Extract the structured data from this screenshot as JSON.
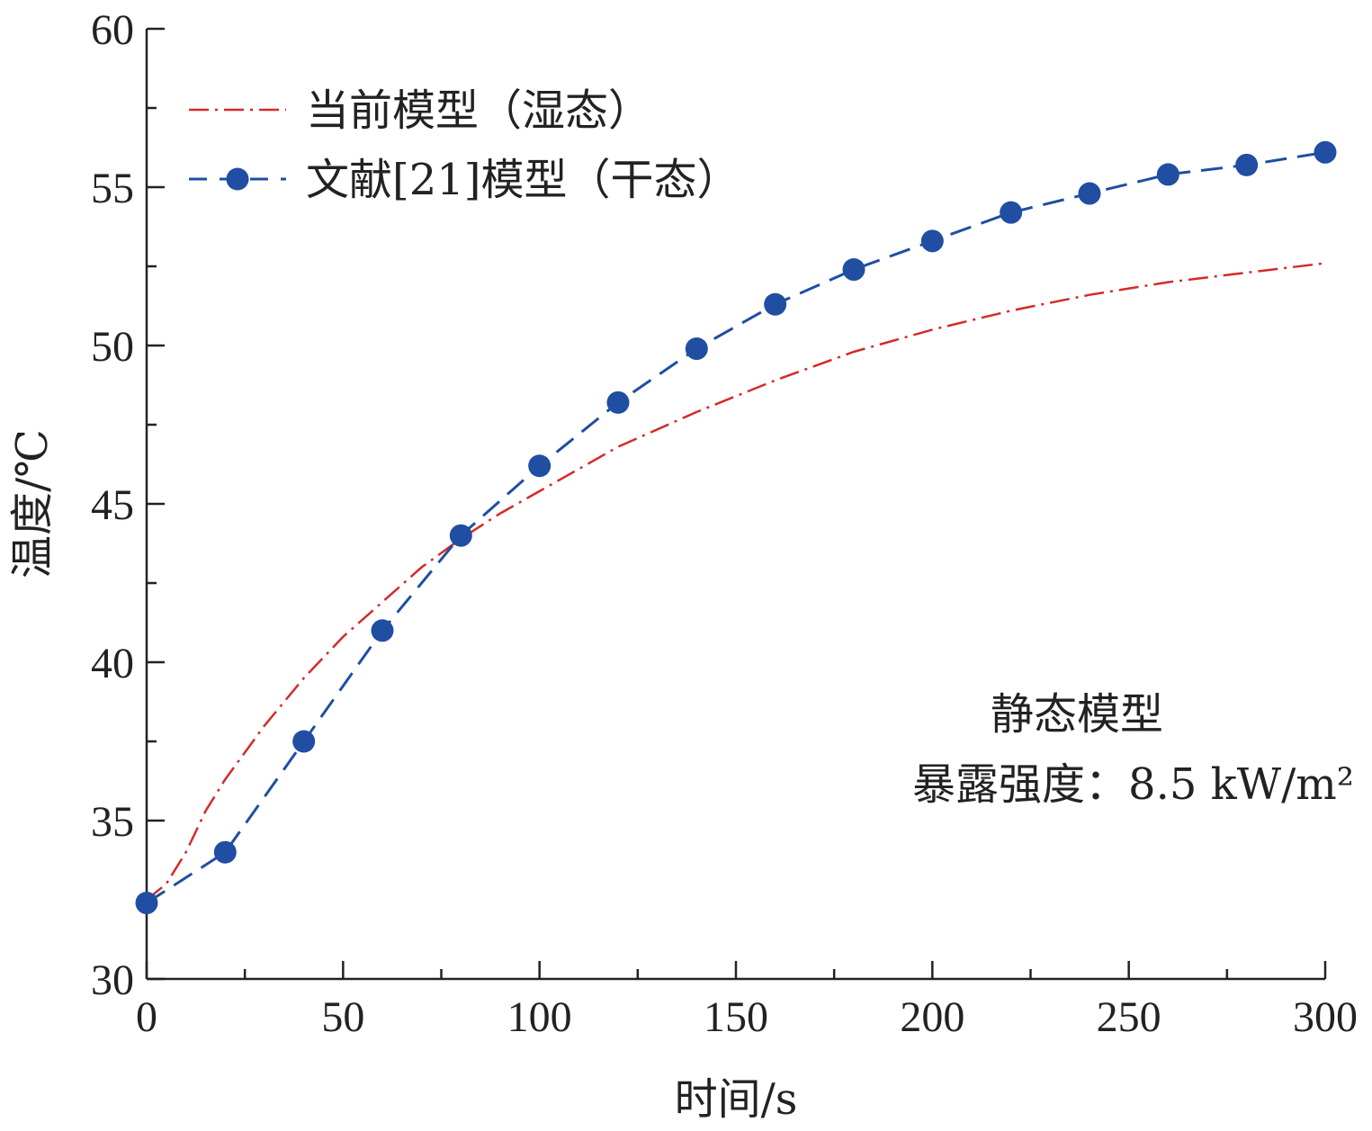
{
  "chart_data": {
    "type": "line",
    "xlabel": "时间/s",
    "ylabel": "温度/℃",
    "xlim": [
      0,
      300
    ],
    "ylim": [
      30,
      60
    ],
    "x_ticks": [
      0,
      50,
      100,
      150,
      200,
      250,
      300
    ],
    "y_ticks": [
      30,
      35,
      40,
      45,
      50,
      55,
      60
    ],
    "grid": false,
    "legend_position": "top-left",
    "series": [
      {
        "name": "当前模型（湿态）",
        "style": "dash-dot",
        "color": "#d42a2a",
        "x": [
          0,
          5,
          10,
          15,
          20,
          30,
          40,
          50,
          60,
          70,
          80,
          90,
          100,
          120,
          140,
          160,
          180,
          200,
          220,
          240,
          260,
          280,
          300
        ],
        "y": [
          32.5,
          33.0,
          34.0,
          35.3,
          36.3,
          38.0,
          39.5,
          40.8,
          41.9,
          43.0,
          43.9,
          44.7,
          45.4,
          46.8,
          47.9,
          48.9,
          49.8,
          50.5,
          51.1,
          51.6,
          52.0,
          52.3,
          52.6
        ]
      },
      {
        "name": "文献[21]模型（干态）",
        "style": "dashed-markers",
        "color": "#1f4ea3",
        "x": [
          0,
          20,
          40,
          60,
          80,
          100,
          120,
          140,
          160,
          180,
          200,
          220,
          240,
          260,
          280,
          300
        ],
        "y": [
          32.4,
          34.0,
          37.5,
          41.0,
          44.0,
          46.2,
          48.2,
          49.9,
          51.3,
          52.4,
          53.3,
          54.2,
          54.8,
          55.4,
          55.7,
          56.1
        ]
      }
    ],
    "annotations": [
      "静态模型",
      "暴露强度：8.5 kW/m²"
    ]
  }
}
